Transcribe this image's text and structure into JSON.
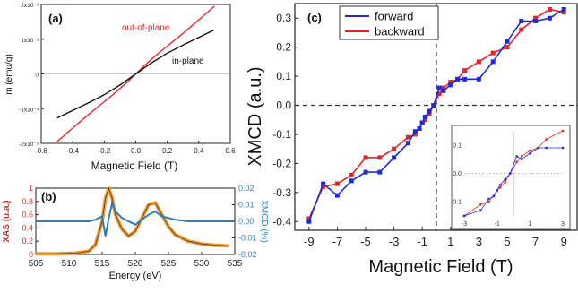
{
  "chart_data": [
    {
      "type": "line",
      "panel_label": "(a)",
      "xlabel": "Magnetic Field (T)",
      "ylabel": "m (emu/g)",
      "xlim": [
        -0.6,
        0.6
      ],
      "ylim": [
        -0.002,
        0.002
      ],
      "x_ticks": [
        "-0.6",
        "-0.4",
        "-0.2",
        "0.0",
        "0.2",
        "0.4",
        "0.6"
      ],
      "x_tick_values": [
        -0.6,
        -0.4,
        -0.2,
        0.0,
        0.2,
        0.4,
        0.6
      ],
      "y_ticks": [
        "-2x10⁻³",
        "-1x10⁻³",
        "0",
        "1x10⁻³",
        "2x10⁻³"
      ],
      "y_tick_values": [
        -0.002,
        -0.001,
        0,
        0.001,
        0.002
      ],
      "grid": false,
      "series": [
        {
          "name": "out-of-plane",
          "color": "#e8262a",
          "x": [
            -0.5,
            -0.4,
            -0.3,
            -0.2,
            -0.15,
            -0.1,
            -0.05,
            0.0,
            0.05,
            0.1,
            0.15,
            0.2,
            0.3,
            0.4,
            0.5
          ],
          "y": [
            -0.00195,
            -0.00156,
            -0.00117,
            -0.0008,
            -0.00062,
            -0.00042,
            -0.00022,
            0.0,
            0.00022,
            0.00042,
            0.00062,
            0.0008,
            0.00117,
            0.00156,
            0.00195
          ]
        },
        {
          "name": "in-plane",
          "color": "#111111",
          "x": [
            -0.5,
            -0.4,
            -0.3,
            -0.2,
            -0.1,
            0.0,
            0.1,
            0.2,
            0.3,
            0.4,
            0.5
          ],
          "y": [
            -0.00127,
            -0.00105,
            -0.00083,
            -0.0006,
            -0.00032,
            0.0,
            0.00032,
            0.0006,
            0.00083,
            0.00105,
            0.00127
          ]
        }
      ]
    },
    {
      "type": "line",
      "panel_label": "(b)",
      "xlabel": "Energy (eV)",
      "ylabel": "XAS (u.a.)",
      "ylabel_right": "XMCD (%)",
      "xlim": [
        505,
        535
      ],
      "ylim": [
        0,
        1.0
      ],
      "ylim_right": [
        -0.02,
        0.02
      ],
      "x_ticks": [
        "505",
        "510",
        "515",
        "520",
        "525",
        "530",
        "535"
      ],
      "x_tick_values": [
        505,
        510,
        515,
        520,
        525,
        530,
        535
      ],
      "y_ticks": [
        "0",
        "0.2",
        "0.4",
        "0.6",
        "0.8",
        "1"
      ],
      "y_tick_values": [
        0,
        0.2,
        0.4,
        0.6,
        0.8,
        1.0
      ],
      "y_ticks_right": [
        "-0.02",
        "-0.01",
        "0.00",
        "0.01",
        "0.02"
      ],
      "y_tick_values_right": [
        -0.02,
        -0.01,
        0.0,
        0.01,
        0.02
      ],
      "grid": false,
      "series": [
        {
          "axis": "left",
          "color": "#f39c34",
          "line_color": "#4a3a2a",
          "x": [
            505,
            508,
            511,
            513,
            514,
            515,
            515.5,
            516,
            516.5,
            517,
            518,
            519,
            520,
            521,
            522,
            523,
            524,
            525,
            526,
            528,
            530,
            532,
            534
          ],
          "y": [
            0.01,
            0.01,
            0.02,
            0.05,
            0.15,
            0.5,
            0.85,
            1.0,
            0.85,
            0.6,
            0.38,
            0.28,
            0.35,
            0.55,
            0.75,
            0.78,
            0.6,
            0.42,
            0.3,
            0.2,
            0.16,
            0.14,
            0.13
          ]
        },
        {
          "axis": "right",
          "color": "#2e7fb8",
          "x": [
            505,
            510,
            513,
            514,
            515,
            515.5,
            516,
            516.5,
            517,
            518,
            520,
            521,
            522,
            523,
            524,
            526,
            528,
            530,
            532,
            535
          ],
          "y": [
            0.0,
            0.0,
            0.0,
            0.001,
            0.003,
            -0.009,
            0.002,
            0.011,
            0.006,
            0.002,
            -0.002,
            0.001,
            0.004,
            0.006,
            0.003,
            0.001,
            0.0,
            0.0,
            0.0,
            0.0
          ]
        }
      ]
    },
    {
      "type": "line",
      "panel_label": "(c)",
      "xlabel": "Magnetic Field (T)",
      "ylabel": "XMCD (a.u.)",
      "xlim": [
        -10,
        10
      ],
      "ylim": [
        -0.43,
        0.35
      ],
      "x_ticks": [
        "-9",
        "-7",
        "-5",
        "-3",
        "-1",
        "1",
        "3",
        "5",
        "7",
        "9"
      ],
      "x_tick_values": [
        -9,
        -7,
        -5,
        -3,
        -1,
        1,
        3,
        5,
        7,
        9
      ],
      "y_ticks": [
        "-0.4",
        "-0.3",
        "-0.2",
        "-0.1",
        "0.0",
        "0.1",
        "0.2",
        "0.3"
      ],
      "y_tick_values": [
        -0.4,
        -0.3,
        -0.2,
        -0.1,
        0.0,
        0.1,
        0.2,
        0.3
      ],
      "grid": false,
      "legend_position": "top-left",
      "series": [
        {
          "name": "forward",
          "color": "#1f2bd6",
          "x": [
            -9,
            -8,
            -7,
            -6,
            -5,
            -4,
            -3,
            -2,
            -1.5,
            -1.2,
            -1,
            -0.8,
            -0.5,
            -0.2,
            0.2,
            0.5,
            1,
            1.5,
            2,
            3,
            4,
            5,
            6,
            7,
            8,
            9
          ],
          "y": [
            -0.4,
            -0.27,
            -0.31,
            -0.26,
            -0.23,
            -0.23,
            -0.18,
            -0.13,
            -0.09,
            -0.08,
            -0.06,
            -0.04,
            -0.02,
            0.0,
            0.06,
            0.05,
            0.07,
            0.09,
            0.09,
            0.09,
            0.15,
            0.22,
            0.29,
            0.29,
            0.3,
            0.33
          ]
        },
        {
          "name": "backward",
          "color": "#e0262a",
          "x": [
            -9,
            -8,
            -7,
            -6,
            -5,
            -4,
            -3,
            -2,
            -1.5,
            -1.2,
            -1,
            -0.8,
            -0.5,
            -0.2,
            0.2,
            0.5,
            1,
            1.5,
            2,
            3,
            4,
            5,
            6,
            7,
            8,
            9
          ],
          "y": [
            -0.39,
            -0.28,
            -0.27,
            -0.24,
            -0.18,
            -0.18,
            -0.15,
            -0.11,
            -0.1,
            -0.08,
            -0.06,
            -0.05,
            -0.03,
            0.0,
            0.04,
            0.06,
            0.08,
            0.09,
            0.12,
            0.15,
            0.18,
            0.2,
            0.26,
            0.3,
            0.33,
            0.32
          ]
        }
      ],
      "inset": {
        "xlim": [
          -3,
          3
        ],
        "ylim": [
          -0.15,
          0.15
        ],
        "x_ticks": [
          "-3",
          "-1",
          "1",
          "3"
        ],
        "x_tick_values": [
          -3,
          -1,
          1,
          3
        ],
        "y_ticks": [
          "-0.1",
          "0.0",
          "0.1"
        ],
        "y_tick_values": [
          -0.1,
          0.0,
          0.1
        ]
      }
    }
  ]
}
